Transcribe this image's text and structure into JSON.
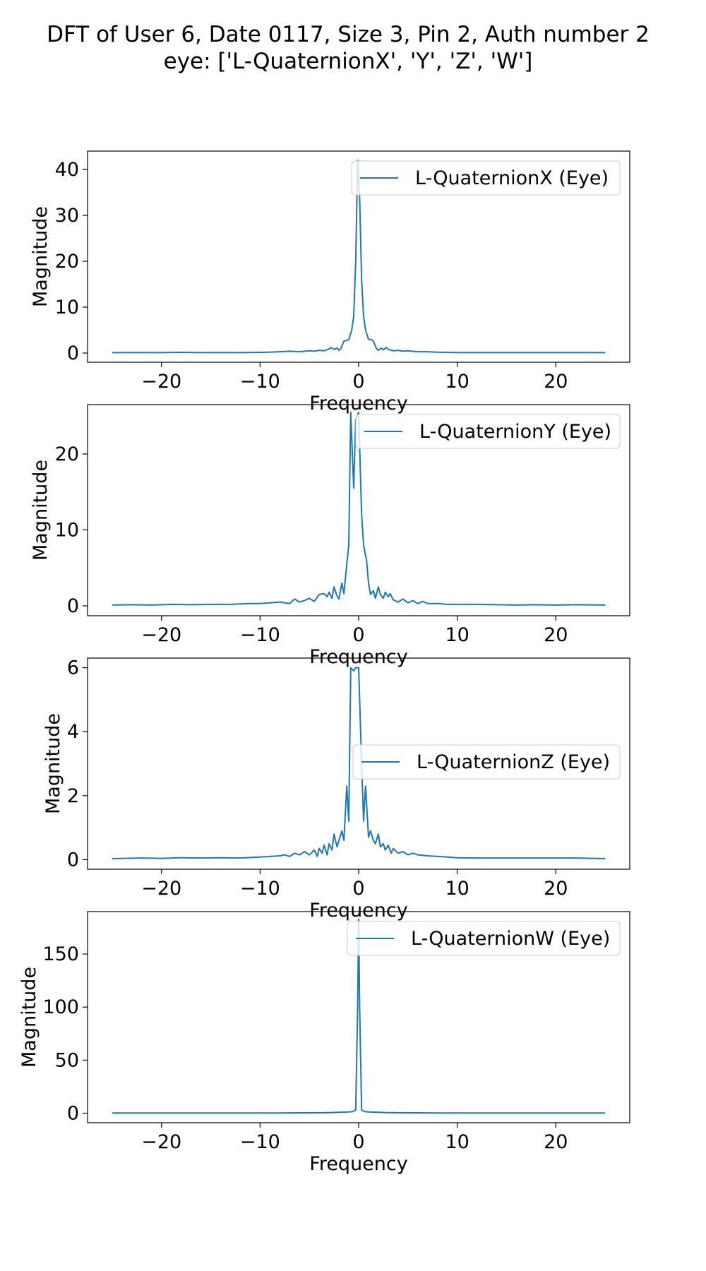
{
  "figure": {
    "title_line1": "DFT of User 6, Date 0117, Size 3, Pin 2, Auth number 2",
    "title_line2": "eye: ['L-QuaternionX', 'Y', 'Z', 'W']"
  },
  "colors": {
    "series": "#1f77b4",
    "axes": "#000000",
    "background": "#ffffff"
  },
  "chart_data": [
    {
      "type": "line",
      "xlabel": "Frequency",
      "ylabel": "Magnitude",
      "xlim": [
        -27.5,
        27.5
      ],
      "ylim": [
        -2,
        44
      ],
      "xticks": [
        -20,
        -10,
        0,
        10,
        20
      ],
      "xtick_labels": [
        "−20",
        "−10",
        "0",
        "10",
        "20"
      ],
      "yticks": [
        0,
        10,
        20,
        30,
        40
      ],
      "legend_loc": "upper right",
      "grid": false,
      "series": [
        {
          "name": "L-QuaternionX (Eye)",
          "x": [
            -25,
            -22,
            -20,
            -18,
            -16,
            -14,
            -12,
            -10,
            -9,
            -8,
            -7,
            -6,
            -5,
            -4.5,
            -4,
            -3.5,
            -3,
            -2.8,
            -2.5,
            -2.2,
            -2,
            -1.8,
            -1.5,
            -1.3,
            -1,
            -0.7,
            -0.5,
            -0.3,
            -0.1,
            0,
            0.1,
            0.3,
            0.5,
            0.7,
            1,
            1.3,
            1.5,
            1.8,
            2,
            2.3,
            2.5,
            2.8,
            3,
            3.5,
            4,
            4.5,
            5,
            6,
            7,
            8,
            9,
            10,
            12,
            14,
            16,
            18,
            20,
            22,
            25
          ],
          "y": [
            0.1,
            0.1,
            0.1,
            0.15,
            0.1,
            0.1,
            0.1,
            0.15,
            0.2,
            0.3,
            0.4,
            0.3,
            0.5,
            0.4,
            0.6,
            0.5,
            0.9,
            1.2,
            0.8,
            1.1,
            0.6,
            1.0,
            2.6,
            2.7,
            2.9,
            5.0,
            8.0,
            20.0,
            42.0,
            38.0,
            34.0,
            16.0,
            8.0,
            5.0,
            3.0,
            2.9,
            2.6,
            1.0,
            0.6,
            1.1,
            0.7,
            1.2,
            0.8,
            0.5,
            0.6,
            0.4,
            0.5,
            0.3,
            0.3,
            0.2,
            0.15,
            0.1,
            0.1,
            0.1,
            0.1,
            0.1,
            0.1,
            0.1,
            0.1
          ]
        }
      ]
    },
    {
      "type": "line",
      "xlabel": "Frequency",
      "ylabel": "Magnitude",
      "xlim": [
        -27.5,
        27.5
      ],
      "ylim": [
        -1.3,
        26.5
      ],
      "xticks": [
        -20,
        -10,
        0,
        10,
        20
      ],
      "xtick_labels": [
        "−20",
        "−10",
        "0",
        "10",
        "20"
      ],
      "yticks": [
        0,
        10,
        20
      ],
      "legend_loc": "upper right",
      "grid": false,
      "series": [
        {
          "name": "L-QuaternionY (Eye)",
          "x": [
            -25,
            -23,
            -21,
            -19,
            -17,
            -15,
            -13,
            -11,
            -10,
            -9,
            -8,
            -7,
            -6.5,
            -6,
            -5.5,
            -5,
            -4.5,
            -4,
            -3.5,
            -3.2,
            -3,
            -2.7,
            -2.5,
            -2.2,
            -2,
            -1.7,
            -1.5,
            -1.2,
            -1,
            -0.8,
            -0.5,
            -0.3,
            0,
            0.3,
            0.5,
            0.8,
            1,
            1.2,
            1.5,
            1.7,
            2,
            2.2,
            2.5,
            2.7,
            3,
            3.2,
            3.5,
            4,
            4.5,
            5,
            5.5,
            6,
            6.5,
            7,
            8,
            9,
            10,
            12,
            14,
            16,
            18,
            20,
            22,
            25
          ],
          "y": [
            0.1,
            0.15,
            0.1,
            0.2,
            0.15,
            0.2,
            0.2,
            0.3,
            0.3,
            0.4,
            0.5,
            0.3,
            0.9,
            0.5,
            0.7,
            1.0,
            0.6,
            1.5,
            1.6,
            1.2,
            1.8,
            1.0,
            2.5,
            1.3,
            0.9,
            3.0,
            1.6,
            5.5,
            8.0,
            25.5,
            15.5,
            24.5,
            25.5,
            12.0,
            8.0,
            6.0,
            3.0,
            1.5,
            2.0,
            1.0,
            2.5,
            1.5,
            1.0,
            1.8,
            1.2,
            1.6,
            0.8,
            0.5,
            0.9,
            0.4,
            0.7,
            0.3,
            0.6,
            0.3,
            0.3,
            0.2,
            0.2,
            0.2,
            0.15,
            0.1,
            0.15,
            0.1,
            0.15,
            0.1
          ]
        }
      ]
    },
    {
      "type": "line",
      "xlabel": "Frequency",
      "ylabel": "Magnitude",
      "xlim": [
        -27.5,
        27.5
      ],
      "ylim": [
        -0.3,
        6.3
      ],
      "xticks": [
        -20,
        -10,
        0,
        10,
        20
      ],
      "xtick_labels": [
        "−20",
        "−10",
        "0",
        "10",
        "20"
      ],
      "yticks": [
        0,
        2,
        4,
        6
      ],
      "legend_loc": "center right",
      "grid": false,
      "series": [
        {
          "name": "L-QuaternionZ (Eye)",
          "x": [
            -25,
            -22,
            -20,
            -18,
            -16,
            -14,
            -12,
            -10,
            -9,
            -8,
            -7.5,
            -7,
            -6.5,
            -6,
            -5.5,
            -5,
            -4.5,
            -4.2,
            -4,
            -3.7,
            -3.5,
            -3.2,
            -3,
            -2.7,
            -2.5,
            -2.2,
            -2,
            -1.7,
            -1.5,
            -1.2,
            -1,
            -0.8,
            -0.5,
            -0.3,
            0,
            0.3,
            0.5,
            0.7,
            1,
            1.2,
            1.5,
            1.7,
            2,
            2.2,
            2.5,
            2.7,
            3,
            3.3,
            3.5,
            4,
            4.5,
            5,
            5.5,
            6,
            7,
            8,
            9,
            10,
            12,
            14,
            16,
            18,
            20,
            22,
            25
          ],
          "y": [
            0.03,
            0.05,
            0.04,
            0.06,
            0.05,
            0.06,
            0.05,
            0.08,
            0.1,
            0.12,
            0.15,
            0.1,
            0.2,
            0.15,
            0.25,
            0.15,
            0.3,
            0.1,
            0.35,
            0.2,
            0.45,
            0.15,
            0.5,
            0.3,
            0.8,
            0.4,
            0.6,
            0.9,
            0.6,
            2.3,
            1.2,
            6.0,
            5.9,
            6.0,
            6.0,
            3.0,
            1.2,
            2.3,
            0.7,
            0.9,
            0.6,
            0.5,
            0.8,
            0.4,
            0.5,
            0.3,
            0.45,
            0.2,
            0.35,
            0.2,
            0.25,
            0.15,
            0.2,
            0.15,
            0.12,
            0.1,
            0.08,
            0.06,
            0.05,
            0.05,
            0.05,
            0.05,
            0.05,
            0.05,
            0.03
          ]
        }
      ]
    },
    {
      "type": "line",
      "xlabel": "Frequency",
      "ylabel": "Magnitude",
      "xlim": [
        -27.5,
        27.5
      ],
      "ylim": [
        -9,
        190
      ],
      "xticks": [
        -20,
        -10,
        0,
        10,
        20
      ],
      "xtick_labels": [
        "−20",
        "−10",
        "0",
        "10",
        "20"
      ],
      "yticks": [
        0,
        50,
        100,
        150
      ],
      "legend_loc": "upper right",
      "grid": false,
      "series": [
        {
          "name": "L-QuaternionW (Eye)",
          "x": [
            -25,
            -20,
            -15,
            -10,
            -8,
            -6,
            -4,
            -3,
            -2,
            -1.5,
            -1,
            -0.6,
            -0.3,
            -0.1,
            0,
            0.1,
            0.3,
            0.6,
            1,
            1.5,
            2,
            3,
            4,
            6,
            8,
            10,
            15,
            20,
            25
          ],
          "y": [
            0.1,
            0.1,
            0.1,
            0.2,
            0.2,
            0.3,
            0.4,
            0.5,
            0.8,
            1.0,
            1.2,
            1.5,
            3.0,
            100.0,
            183.0,
            100.0,
            3.0,
            1.5,
            1.2,
            1.0,
            0.8,
            0.5,
            0.4,
            0.3,
            0.2,
            0.2,
            0.1,
            0.1,
            0.1
          ]
        }
      ]
    }
  ]
}
